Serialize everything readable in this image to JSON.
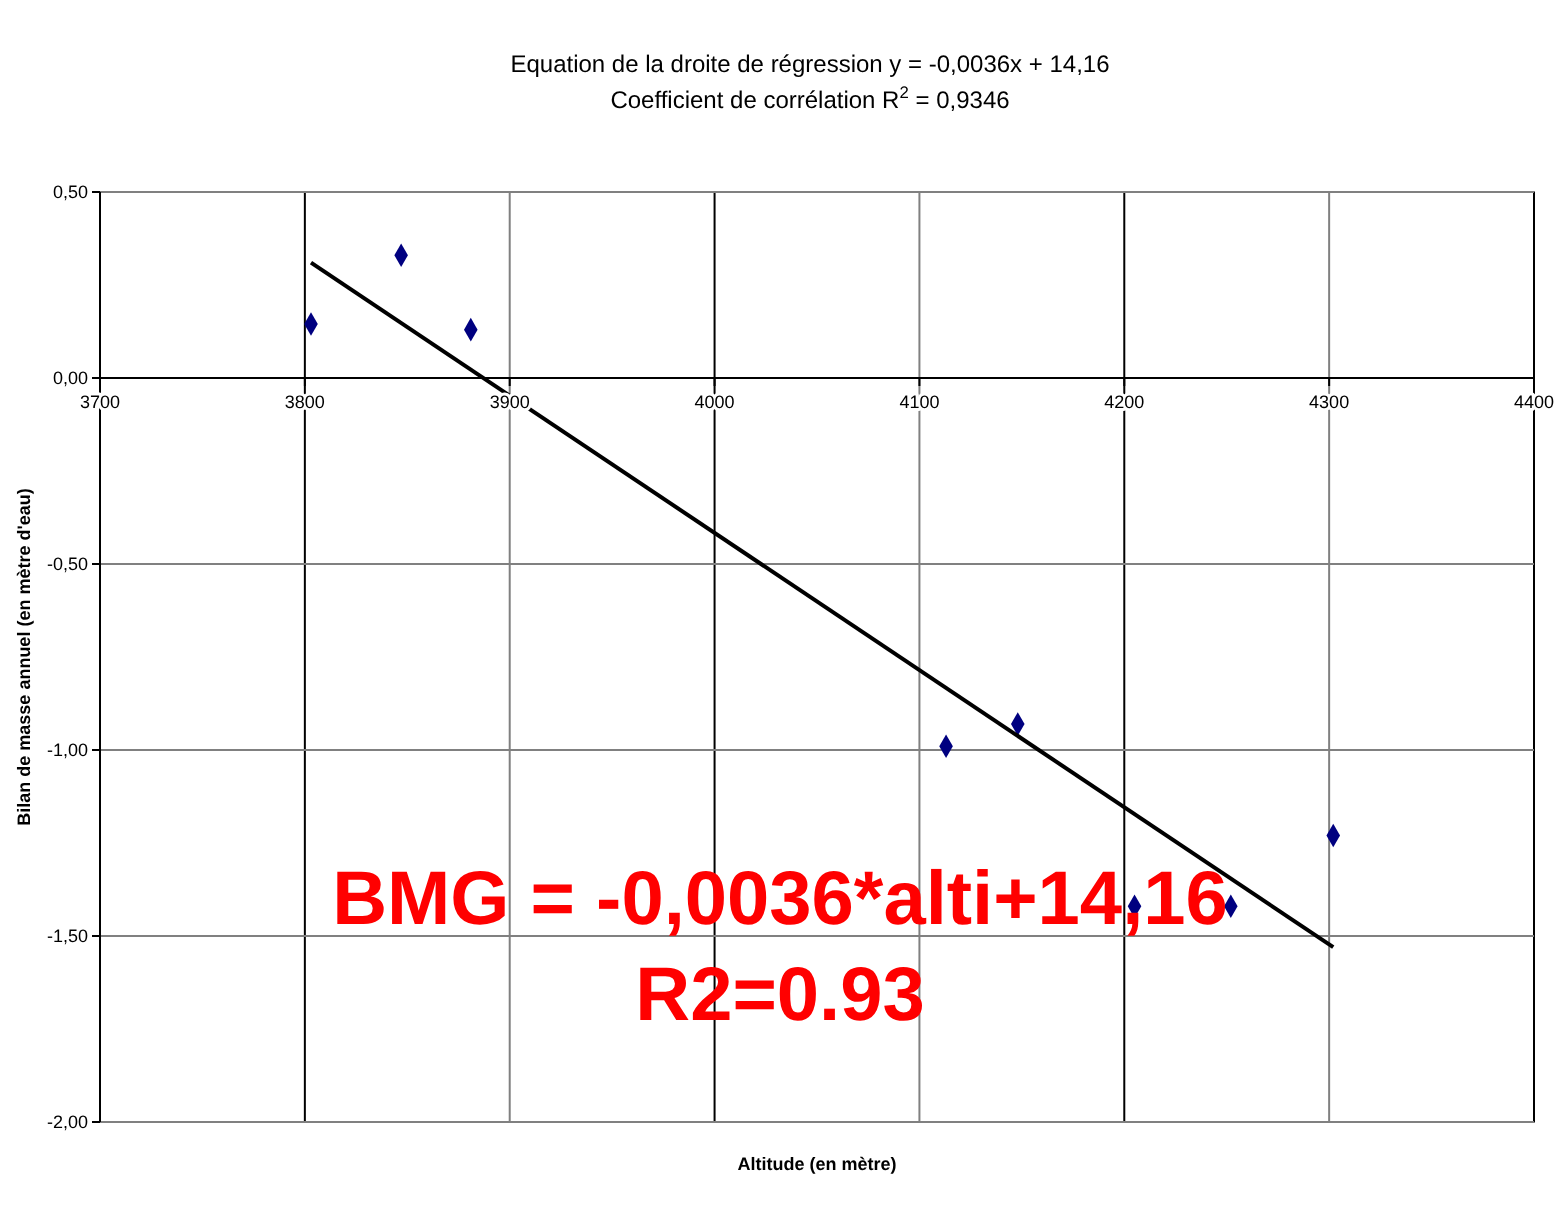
{
  "chart_data": {
    "type": "scatter",
    "title": "Equation de la droite de régression y = -0,0036x + 14,16",
    "subtitle": "Coefficient de corrélation R$^{2}$ = 0,9346",
    "xlabel": "Altitude (en mètre)",
    "ylabel": "Bilan de masse annuel (en mètre d'eau)",
    "annotations": [
      "BMG = -0,0036*alti+14,16",
      "R2=0.93"
    ],
    "series": [
      {
        "color": "#000080",
        "marker": "diamond",
        "x": [
          3803,
          3847,
          3881,
          4113,
          4148,
          4205,
          4252,
          4302
        ],
        "values": [
          0.145,
          0.33,
          0.13,
          -0.99,
          -0.93,
          -1.42,
          -1.42,
          -1.23
        ]
      },
      {
        "type": "line",
        "color": "#000000",
        "marker": "none",
        "line_style": "solid",
        "x": [
          3803,
          4302
        ],
        "values": [
          0.31,
          -1.53
        ]
      }
    ],
    "xlim": [
      3700,
      4400
    ],
    "xticks": [
      3700,
      3800,
      3900,
      4000,
      4100,
      4200,
      4300,
      4400
    ],
    "ylim": [
      -2,
      0.5
    ],
    "yticks": [
      {
        "value": -2,
        "label": "-2,00"
      },
      {
        "value": -1.5,
        "label": "-1,50"
      },
      {
        "value": -1,
        "label": "-1,00"
      },
      {
        "value": -0.5,
        "label": "-0,50"
      },
      {
        "value": 0,
        "label": "0,00"
      },
      {
        "value": 0.5,
        "label": "0,50"
      }
    ],
    "grid": true
  }
}
